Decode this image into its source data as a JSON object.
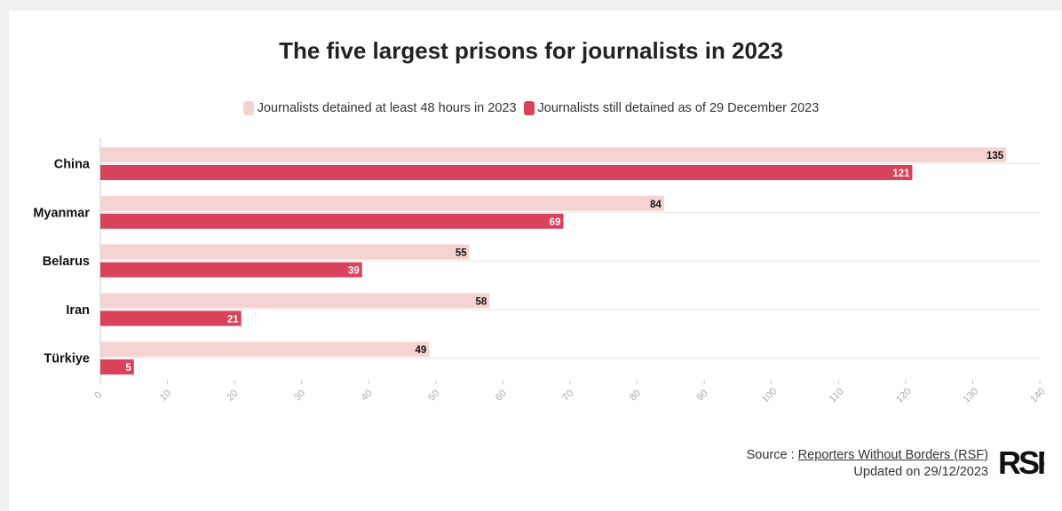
{
  "title": "The five largest prisons for journalists in 2023",
  "legend": [
    {
      "label": "Journalists detained at least 48 hours in 2023",
      "color": "#f5d3d3"
    },
    {
      "label": "Journalists still detained as of 29 December 2023",
      "color": "#d8425a"
    }
  ],
  "source": {
    "prefix": "Source :",
    "link_text": "Reporters Without Borders (RSF)",
    "updated": "Updated on 29/12/2023",
    "logo_text": "RSF"
  },
  "chart_data": {
    "type": "bar",
    "orientation": "horizontal",
    "title": "The five largest prisons for journalists in 2023",
    "categories": [
      "China",
      "Myanmar",
      "Belarus",
      "Iran",
      "Türkiye"
    ],
    "series": [
      {
        "name": "Journalists detained at least 48 hours in 2023",
        "color": "#f5d3d3",
        "values": [
          135,
          84,
          55,
          58,
          49
        ]
      },
      {
        "name": "Journalists still detained as of 29 December 2023",
        "color": "#d8425a",
        "values": [
          121,
          69,
          39,
          21,
          5
        ]
      }
    ],
    "xlim": [
      0,
      140
    ],
    "xticks": [
      0,
      10,
      20,
      30,
      40,
      50,
      60,
      70,
      80,
      90,
      100,
      110,
      120,
      130,
      140
    ],
    "xlabel": "",
    "ylabel": "",
    "grid": "horizontal",
    "legend_position": "top"
  }
}
